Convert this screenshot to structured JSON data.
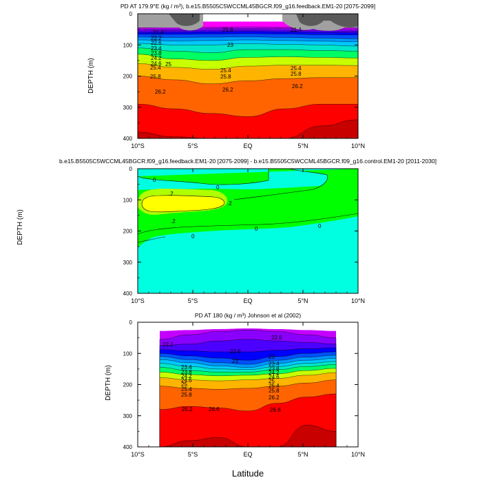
{
  "chart_data": [
    {
      "type": "heatmap",
      "title": "PD AT 179.9°E (kg / m³), b.e15.B5505C5WCCML45BGCR.f09_g16.feedback.EM1-20 [2075-2099]",
      "ylabel": "DEPTH (m)",
      "xlim": [
        -10,
        10
      ],
      "ylim": [
        400,
        0
      ],
      "x_ticks": [
        "10°S",
        "5°S",
        "EQ",
        "5°N",
        "10°N"
      ],
      "y_ticks": [
        "0",
        "100",
        "200",
        "300",
        "400"
      ],
      "bands": [
        {
          "level": 21.0,
          "color": "#ff00ff",
          "d": [
            25,
            25,
            25,
            25,
            25,
            25,
            25
          ]
        },
        {
          "level": 21.8,
          "color": "#c400ff",
          "d": [
            45,
            44,
            43,
            42,
            43,
            44,
            45
          ]
        },
        {
          "level": 22.2,
          "color": "#8a00ff",
          "d": [
            50,
            49,
            48,
            47,
            48,
            50,
            51
          ]
        },
        {
          "level": 22.6,
          "color": "#4c00ff",
          "d": [
            55,
            54,
            53,
            52,
            53,
            55,
            56
          ]
        },
        {
          "level": 23.0,
          "color": "#0000ff",
          "d": [
            60,
            59,
            58,
            57,
            58,
            60,
            61
          ]
        },
        {
          "level": 23.4,
          "color": "#0050ff",
          "d": [
            66,
            66,
            65,
            64,
            65,
            67,
            68
          ]
        },
        {
          "level": 23.8,
          "color": "#0096ff",
          "d": [
            75,
            76,
            75,
            74,
            76,
            78,
            80
          ]
        },
        {
          "level": 24.2,
          "color": "#00c8ff",
          "d": [
            84,
            87,
            86,
            84,
            86,
            88,
            90
          ]
        },
        {
          "level": 24.6,
          "color": "#00e6c8",
          "d": [
            95,
            100,
            100,
            96,
            98,
            100,
            104
          ]
        },
        {
          "level": 25.0,
          "color": "#00ff64",
          "d": [
            110,
            120,
            125,
            115,
            115,
            118,
            120
          ]
        },
        {
          "level": 25.4,
          "color": "#c8ff00",
          "d": [
            130,
            145,
            150,
            140,
            138,
            140,
            142
          ]
        },
        {
          "level": 25.8,
          "color": "#ffb400",
          "d": [
            160,
            172,
            178,
            168,
            165,
            165,
            166
          ]
        },
        {
          "level": 26.2,
          "color": "#ff6400",
          "d": [
            200,
            212,
            225,
            215,
            208,
            205,
            205
          ]
        },
        {
          "level": 26.6,
          "color": "#ff0000",
          "d": [
            290,
            305,
            320,
            330,
            305,
            290,
            290
          ]
        },
        {
          "level": 27.0,
          "color": "#c80000",
          "d": [
            380,
            395,
            400,
            400,
            400,
            360,
            340
          ]
        }
      ],
      "contour_labels": [
        "21.4",
        "21.8",
        "21.4",
        "22.2",
        "22.6",
        "23",
        "23.4",
        "23.8",
        "24.2",
        "24.6",
        "25",
        "25.4",
        "25.8",
        "26.2",
        "25.4",
        "25.8",
        "26.2",
        "25.4",
        "25.8",
        "26.2"
      ]
    },
    {
      "type": "heatmap",
      "title": "b.e15.B5505C5WCCML45BGCR.f09_g16.feedback.EM1-20 [2075-2099] - b.e15.B5505C5WCCML45BGCR.f09_g16.control.EM1-20 [2011-2030]",
      "ylabel": "DEPTH (m)",
      "xlim": [
        -10,
        10
      ],
      "ylim": [
        400,
        0
      ],
      "x_ticks": [
        "10°S",
        "5°S",
        "EQ",
        "5°N",
        "10°N"
      ],
      "y_ticks": [
        "0",
        "100",
        "200",
        "300",
        "400"
      ],
      "background_color": "#00ffe0",
      "regions": [
        {
          "level": 0,
          "color": "#00ff00"
        },
        {
          "level": 0.2,
          "color": "#ffff00"
        }
      ],
      "contour_labels": [
        "0",
        "0",
        ".2",
        ".2",
        ".2",
        "0",
        "0",
        "0"
      ]
    },
    {
      "type": "heatmap",
      "title": "PD AT 180 (kg / m³) Johnson et al (2002)",
      "ylabel": "DEPTH (m)",
      "xlabel": "Latitude",
      "xlim": [
        -10,
        10
      ],
      "data_xlim": [
        -8,
        8
      ],
      "ylim": [
        400,
        0
      ],
      "x_ticks": [
        "10°S",
        "5°S",
        "EQ",
        "5°N",
        "10°N"
      ],
      "y_ticks": [
        "0",
        "100",
        "200",
        "300",
        "400"
      ],
      "bands": [
        {
          "level": 21.8,
          "color": "#c400ff",
          "d": [
            28,
            25,
            22,
            20,
            22,
            25,
            28
          ]
        },
        {
          "level": 22.2,
          "color": "#8a00ff",
          "d": [
            55,
            40,
            30,
            25,
            30,
            40,
            50
          ]
        },
        {
          "level": 22.6,
          "color": "#4c00ff",
          "d": [
            75,
            70,
            60,
            55,
            60,
            65,
            70
          ]
        },
        {
          "level": 23.0,
          "color": "#0000ff",
          "d": [
            88,
            92,
            95,
            95,
            90,
            85,
            82
          ]
        },
        {
          "level": 23.4,
          "color": "#0050ff",
          "d": [
            100,
            108,
            115,
            122,
            110,
            100,
            95
          ]
        },
        {
          "level": 23.8,
          "color": "#0096ff",
          "d": [
            110,
            120,
            130,
            135,
            122,
            112,
            106
          ]
        },
        {
          "level": 24.2,
          "color": "#00c8ff",
          "d": [
            120,
            130,
            140,
            145,
            132,
            122,
            116
          ]
        },
        {
          "level": 24.6,
          "color": "#00e6c8",
          "d": [
            132,
            142,
            150,
            152,
            142,
            132,
            126
          ]
        },
        {
          "level": 25.0,
          "color": "#00ff64",
          "d": [
            145,
            155,
            160,
            160,
            152,
            142,
            136
          ]
        },
        {
          "level": 25.4,
          "color": "#c8ff00",
          "d": [
            160,
            168,
            172,
            170,
            165,
            155,
            148
          ]
        },
        {
          "level": 25.8,
          "color": "#ffb400",
          "d": [
            178,
            185,
            188,
            185,
            180,
            170,
            162
          ]
        },
        {
          "level": 26.2,
          "color": "#ff6400",
          "d": [
            205,
            212,
            215,
            212,
            205,
            195,
            185
          ]
        },
        {
          "level": 26.6,
          "color": "#ff0000",
          "d": [
            280,
            270,
            275,
            285,
            260,
            240,
            230
          ]
        },
        {
          "level": 27.0,
          "color": "#c80000",
          "d": [
            400,
            380,
            370,
            400,
            400,
            330,
            350
          ]
        }
      ],
      "contour_labels": [
        "22.2",
        "22.6",
        "23",
        "22.6",
        "23",
        "23.4",
        "23.8",
        "24.2",
        "24.6",
        "25",
        "25.4",
        "25.8",
        "26.2",
        "23.4",
        "23.8",
        "24.2",
        "24.6",
        "25",
        "25.4",
        "25.8",
        "26.2",
        "26.6",
        "26.6"
      ]
    }
  ],
  "shared_xlabel": "Latitude"
}
